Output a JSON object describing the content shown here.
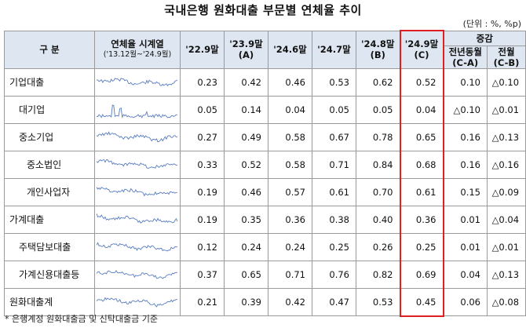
{
  "title": "국내은행 원화대출 부문별 연체율 추이",
  "unit": "(단위 : %, %p)",
  "header": {
    "category": "구 분",
    "series_label": "연체율 시계열",
    "series_range": "('13.12월~'24.9월)",
    "col_22_9": "'22.9말",
    "col_23_9": "'23.9말",
    "col_23_9_tag": "(A)",
    "col_24_6": "'24.6말",
    "col_24_7": "'24.7말",
    "col_24_8": "'24.8말",
    "col_24_8_tag": "(B)",
    "col_24_9": "'24.9말",
    "col_24_9_tag": "(C)",
    "change": "증감",
    "yoy": "전년동월",
    "yoy_tag": "(C-A)",
    "mom": "전월",
    "mom_tag": "(C-B)"
  },
  "rows": [
    {
      "label": "기업대출",
      "indent": 0,
      "v": [
        "0.23",
        "0.42",
        "0.46",
        "0.53",
        "0.62",
        "0.52",
        "0.10",
        "△0.10"
      ]
    },
    {
      "label": "대기업",
      "indent": 1,
      "v": [
        "0.05",
        "0.14",
        "0.04",
        "0.05",
        "0.05",
        "0.04",
        "△0.10",
        "△0.01"
      ]
    },
    {
      "label": "중소기업",
      "indent": 1,
      "v": [
        "0.27",
        "0.49",
        "0.58",
        "0.67",
        "0.78",
        "0.65",
        "0.16",
        "△0.13"
      ]
    },
    {
      "label": "중소법인",
      "indent": 2,
      "v": [
        "0.33",
        "0.52",
        "0.58",
        "0.71",
        "0.84",
        "0.68",
        "0.16",
        "△0.16"
      ]
    },
    {
      "label": "개인사업자",
      "indent": 2,
      "v": [
        "0.19",
        "0.46",
        "0.57",
        "0.61",
        "0.70",
        "0.61",
        "0.15",
        "△0.09"
      ]
    },
    {
      "label": "가계대출",
      "indent": 0,
      "v": [
        "0.19",
        "0.35",
        "0.36",
        "0.38",
        "0.40",
        "0.36",
        "0.01",
        "△0.04"
      ]
    },
    {
      "label": "주택담보대출",
      "indent": 1,
      "v": [
        "0.12",
        "0.24",
        "0.24",
        "0.25",
        "0.26",
        "0.25",
        "0.01",
        "△0.01"
      ]
    },
    {
      "label": "가계신용대출등",
      "indent": 1,
      "v": [
        "0.37",
        "0.65",
        "0.71",
        "0.76",
        "0.82",
        "0.69",
        "0.04",
        "△0.13"
      ]
    },
    {
      "label": "원화대출계",
      "indent": 0,
      "v": [
        "0.21",
        "0.39",
        "0.42",
        "0.47",
        "0.53",
        "0.45",
        "0.06",
        "△0.08"
      ]
    }
  ],
  "footnote": "* 은행계정 원화대출금 및 신탁대출금 기준",
  "colors": {
    "header_bg": "#dde6f1",
    "highlight": "#e02020",
    "spark": "#5b7fc0"
  }
}
